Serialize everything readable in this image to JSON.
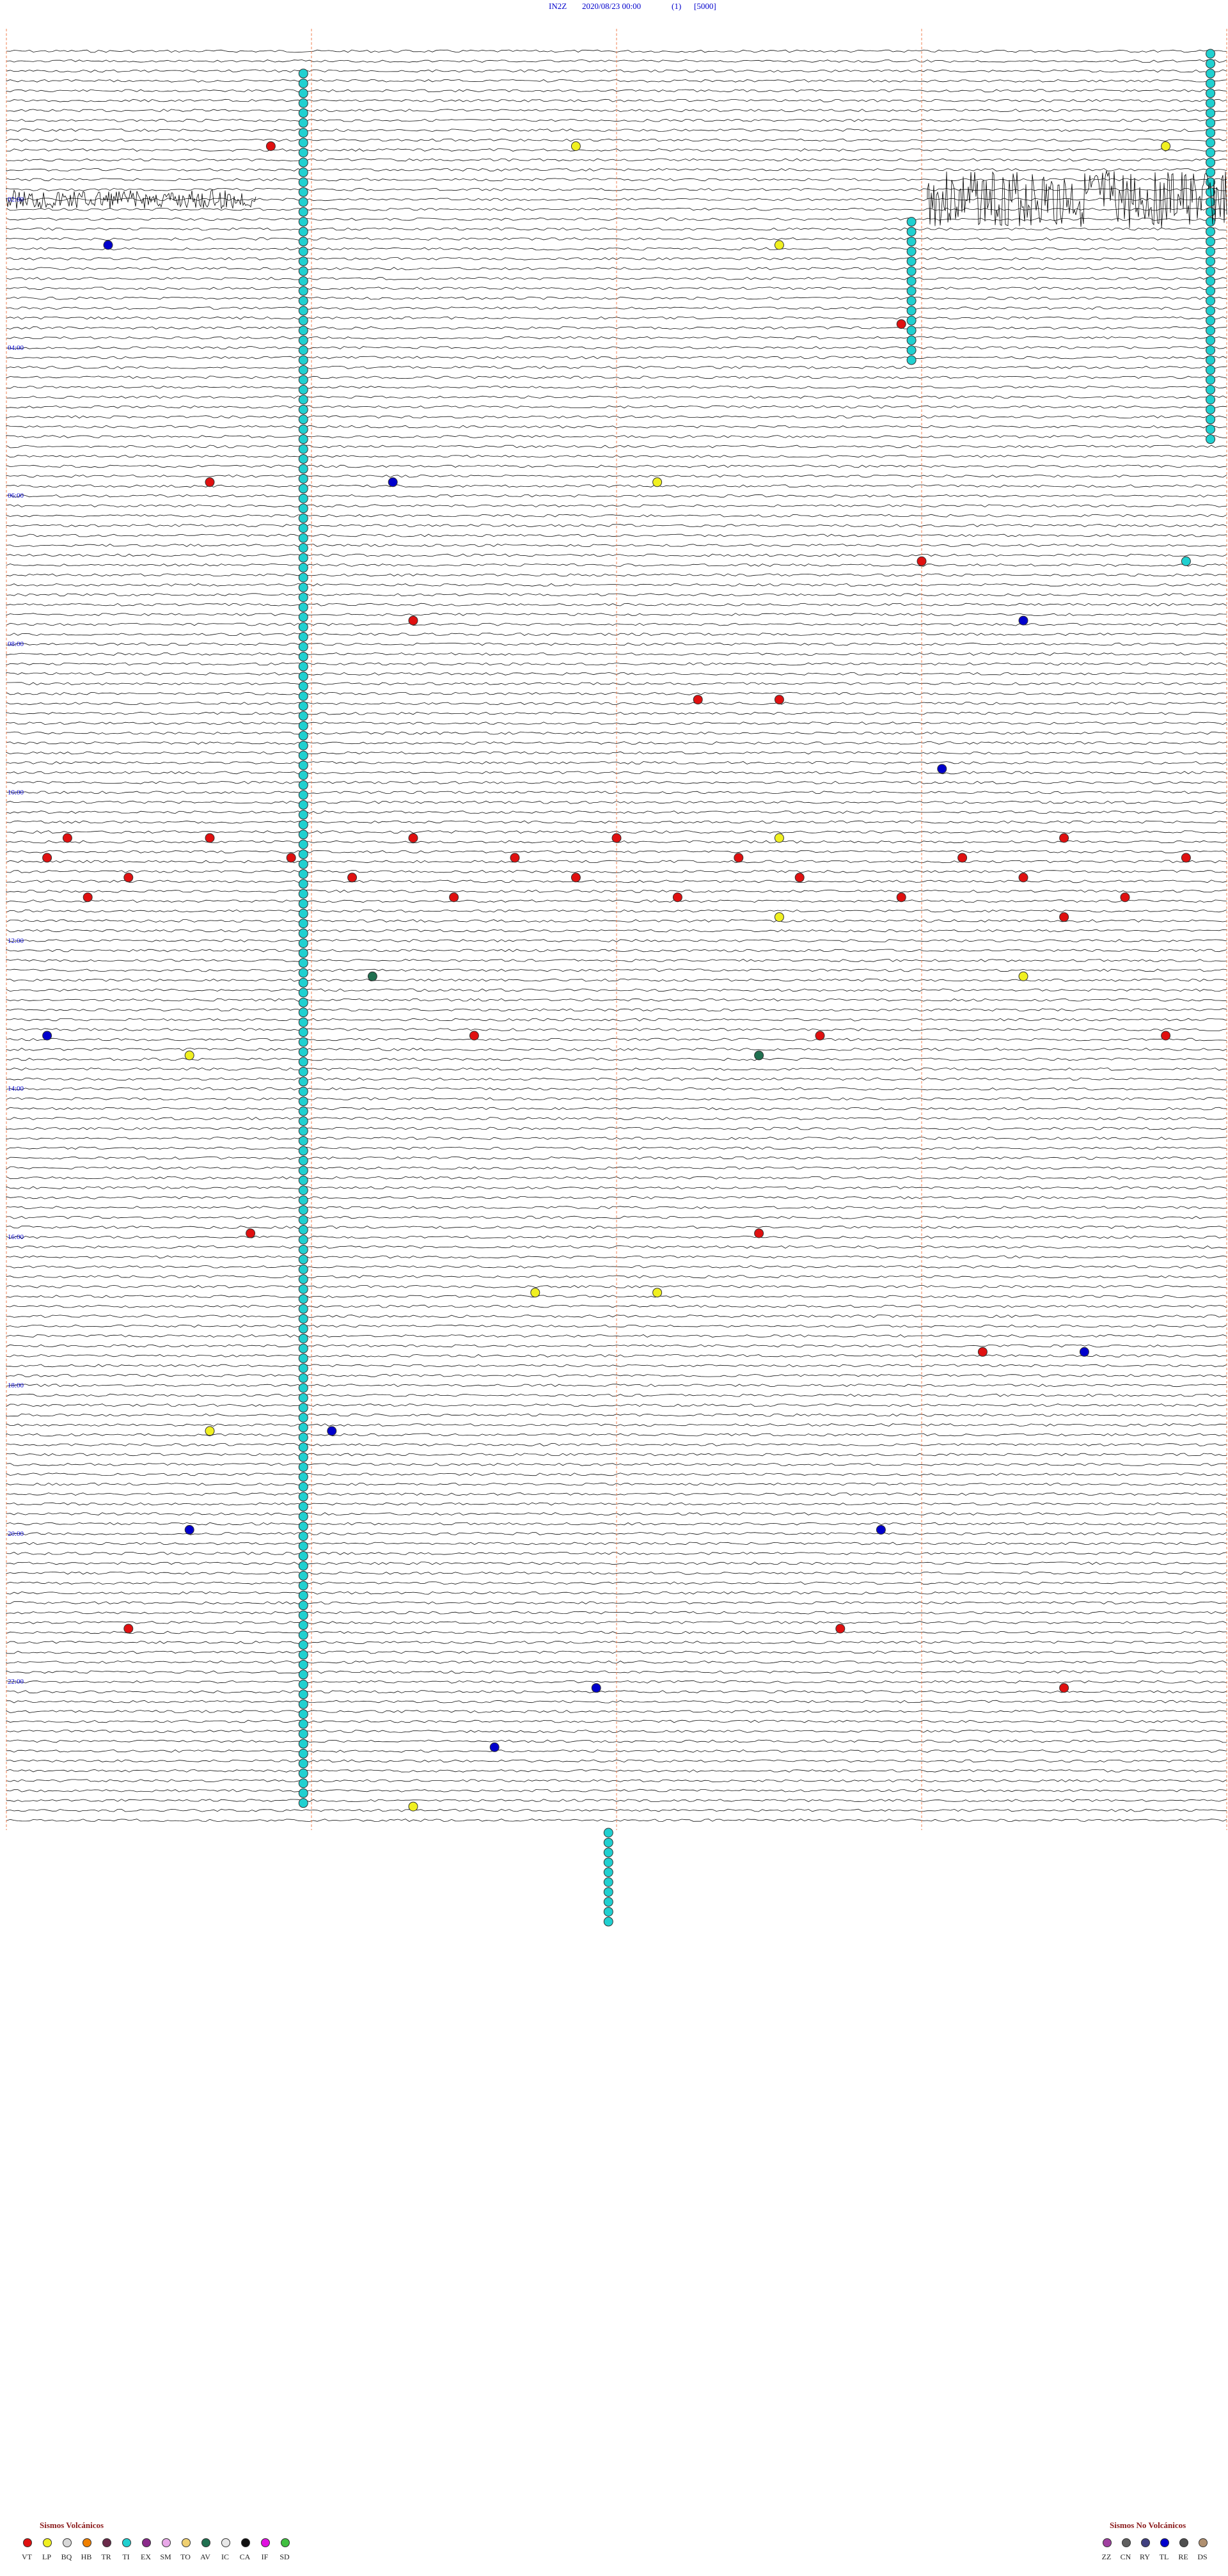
{
  "header": {
    "station": "IN2Z",
    "datetime": "2020/08/23 00:00",
    "channel": "(1)",
    "scale": "[5000]"
  },
  "chart_data": {
    "type": "helicorder",
    "x_unit": "minutes past the hour",
    "time_labels": [
      "02:00",
      "04:00",
      "06:00",
      "08:00",
      "10:00",
      "12:00",
      "14:00",
      "16:00",
      "18:00",
      "20:00",
      "22:00"
    ],
    "volcanic_legend_title": "Sismos Volcánicos",
    "non_volcanic_legend_title": "Sismos No Volcánicos",
    "volcanic_types": [
      {
        "code": "VT",
        "color": "#e01010"
      },
      {
        "code": "LP",
        "color": "#f0f020"
      },
      {
        "code": "BQ",
        "color": "#d8d8d8"
      },
      {
        "code": "HB",
        "color": "#f08000"
      },
      {
        "code": "TR",
        "color": "#6a2a4a"
      },
      {
        "code": "TI",
        "color": "#20d0d0"
      },
      {
        "code": "EX",
        "color": "#8a2a8a"
      },
      {
        "code": "SM",
        "color": "#e8a8e8"
      },
      {
        "code": "TO",
        "color": "#f0d070"
      },
      {
        "code": "AV",
        "color": "#207050"
      },
      {
        "code": "IC",
        "color": "#e8e8e8"
      },
      {
        "code": "CA",
        "color": "#101010"
      },
      {
        "code": "IF",
        "color": "#e010e0"
      },
      {
        "code": "SD",
        "color": "#40c040"
      }
    ],
    "non_volcanic_types": [
      {
        "code": "ZZ",
        "color": "#a040a0"
      },
      {
        "code": "CN",
        "color": "#606060"
      },
      {
        "code": "RY",
        "color": "#404080"
      },
      {
        "code": "TL",
        "color": "#0000cc"
      },
      {
        "code": "RE",
        "color": "#505050"
      },
      {
        "code": "DS",
        "color": "#b09070"
      }
    ],
    "events": [
      {
        "row": 10,
        "minute": 13,
        "type": "VT"
      },
      {
        "row": 10,
        "minute": 28,
        "type": "LP"
      },
      {
        "row": 10,
        "minute": 57,
        "type": "LP"
      },
      {
        "row": 20,
        "minute": 5,
        "type": "TL"
      },
      {
        "row": 20,
        "minute": 38,
        "type": "LP"
      },
      {
        "row": 28,
        "minute": 44,
        "type": "VT"
      },
      {
        "row": 44,
        "minute": 10,
        "type": "VT"
      },
      {
        "row": 44,
        "minute": 19,
        "type": "TL"
      },
      {
        "row": 44,
        "minute": 32,
        "type": "LP"
      },
      {
        "row": 52,
        "minute": 45,
        "type": "VT"
      },
      {
        "row": 52,
        "minute": 58,
        "type": "TI"
      },
      {
        "row": 58,
        "minute": 20,
        "type": "VT"
      },
      {
        "row": 58,
        "minute": 50,
        "type": "TL"
      },
      {
        "row": 66,
        "minute": 34,
        "type": "VT"
      },
      {
        "row": 66,
        "minute": 38,
        "type": "VT"
      },
      {
        "row": 73,
        "minute": 46,
        "type": "TL"
      },
      {
        "row": 80,
        "minute": 3,
        "type": "VT"
      },
      {
        "row": 80,
        "minute": 10,
        "type": "VT"
      },
      {
        "row": 80,
        "minute": 20,
        "type": "VT"
      },
      {
        "row": 80,
        "minute": 30,
        "type": "VT"
      },
      {
        "row": 80,
        "minute": 38,
        "type": "LP"
      },
      {
        "row": 80,
        "minute": 52,
        "type": "VT"
      },
      {
        "row": 82,
        "minute": 2,
        "type": "VT"
      },
      {
        "row": 82,
        "minute": 14,
        "type": "VT"
      },
      {
        "row": 82,
        "minute": 25,
        "type": "VT"
      },
      {
        "row": 82,
        "minute": 36,
        "type": "VT"
      },
      {
        "row": 82,
        "minute": 47,
        "type": "VT"
      },
      {
        "row": 82,
        "minute": 58,
        "type": "VT"
      },
      {
        "row": 84,
        "minute": 6,
        "type": "VT"
      },
      {
        "row": 84,
        "minute": 17,
        "type": "VT"
      },
      {
        "row": 84,
        "minute": 28,
        "type": "VT"
      },
      {
        "row": 84,
        "minute": 39,
        "type": "VT"
      },
      {
        "row": 84,
        "minute": 50,
        "type": "VT"
      },
      {
        "row": 86,
        "minute": 4,
        "type": "VT"
      },
      {
        "row": 86,
        "minute": 22,
        "type": "VT"
      },
      {
        "row": 86,
        "minute": 33,
        "type": "VT"
      },
      {
        "row": 86,
        "minute": 44,
        "type": "VT"
      },
      {
        "row": 86,
        "minute": 55,
        "type": "VT"
      },
      {
        "row": 88,
        "minute": 38,
        "type": "LP"
      },
      {
        "row": 88,
        "minute": 52,
        "type": "VT"
      },
      {
        "row": 94,
        "minute": 18,
        "type": "AV"
      },
      {
        "row": 94,
        "minute": 50,
        "type": "LP"
      },
      {
        "row": 100,
        "minute": 2,
        "type": "TL"
      },
      {
        "row": 100,
        "minute": 23,
        "type": "VT"
      },
      {
        "row": 100,
        "minute": 40,
        "type": "VT"
      },
      {
        "row": 100,
        "minute": 57,
        "type": "VT"
      },
      {
        "row": 102,
        "minute": 9,
        "type": "LP"
      },
      {
        "row": 102,
        "minute": 37,
        "type": "AV"
      },
      {
        "row": 120,
        "minute": 12,
        "type": "VT"
      },
      {
        "row": 120,
        "minute": 37,
        "type": "VT"
      },
      {
        "row": 126,
        "minute": 26,
        "type": "LP"
      },
      {
        "row": 126,
        "minute": 32,
        "type": "LP"
      },
      {
        "row": 132,
        "minute": 48,
        "type": "VT"
      },
      {
        "row": 132,
        "minute": 53,
        "type": "TL"
      },
      {
        "row": 140,
        "minute": 10,
        "type": "LP"
      },
      {
        "row": 140,
        "minute": 16,
        "type": "TL"
      },
      {
        "row": 150,
        "minute": 43,
        "type": "TL"
      },
      {
        "row": 150,
        "minute": 9,
        "type": "TL"
      },
      {
        "row": 160,
        "minute": 6,
        "type": "VT"
      },
      {
        "row": 160,
        "minute": 41,
        "type": "VT"
      },
      {
        "row": 166,
        "minute": 29,
        "type": "TL"
      },
      {
        "row": 166,
        "minute": 52,
        "type": "VT"
      },
      {
        "row": 172,
        "minute": 24,
        "type": "TL"
      },
      {
        "row": 178,
        "minute": 20,
        "type": "LP"
      }
    ]
  }
}
